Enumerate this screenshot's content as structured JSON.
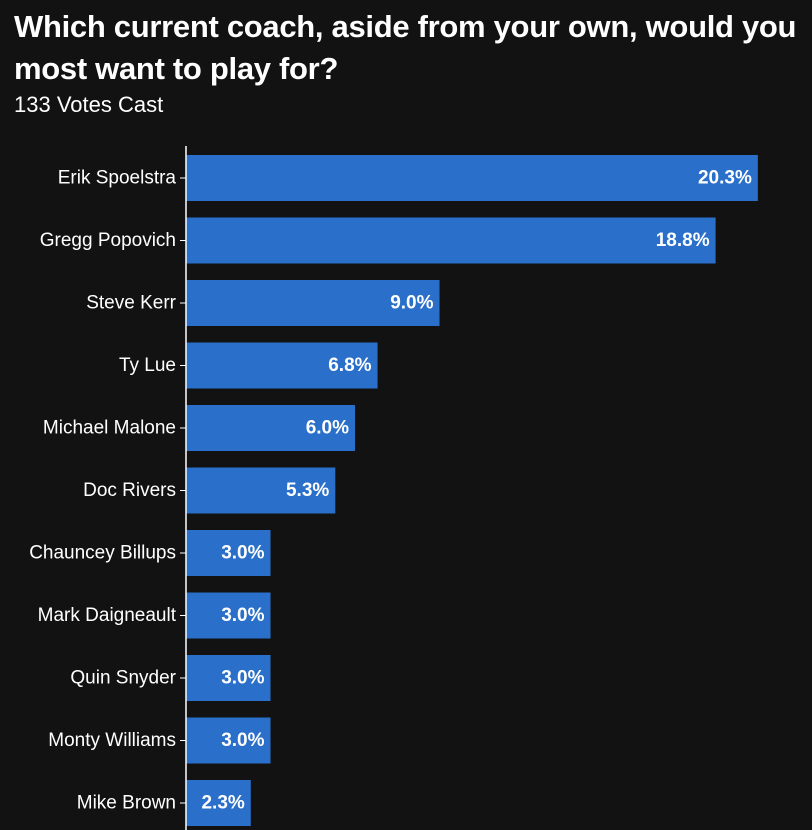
{
  "chart_data": {
    "type": "bar",
    "orientation": "horizontal",
    "title": "Which current coach, aside from your own, would you most want to play for?",
    "subtitle": "133 Votes Cast",
    "categories": [
      "Erik Spoelstra",
      "Gregg Popovich",
      "Steve Kerr",
      "Ty Lue",
      "Michael Malone",
      "Doc Rivers",
      "Chauncey Billups",
      "Mark Daigneault",
      "Quin Snyder",
      "Monty Williams",
      "Mike Brown"
    ],
    "values": [
      20.3,
      18.8,
      9.0,
      6.8,
      6.0,
      5.3,
      3.0,
      3.0,
      3.0,
      3.0,
      2.3
    ],
    "value_labels": [
      "20.3%",
      "18.8%",
      "9.0%",
      "6.8%",
      "6.0%",
      "5.3%",
      "3.0%",
      "3.0%",
      "3.0%",
      "3.0%",
      "2.3%"
    ],
    "xlabel": "",
    "ylabel": "",
    "grid": false,
    "legend": "none",
    "bar_color": "#2a6fca",
    "background_color": "#121212",
    "axis_color": "#ffffff"
  }
}
